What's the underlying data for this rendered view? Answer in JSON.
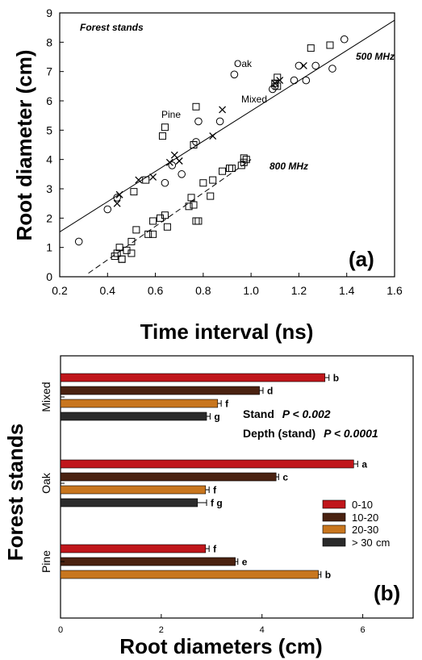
{
  "chart_data": [
    {
      "type": "scatter",
      "panel_label": "(a)",
      "title": "Forest stands",
      "xlabel": "Time interval (ns)",
      "ylabel": "Root diameter (cm)",
      "xlim": [
        0.2,
        1.6
      ],
      "ylim": [
        0,
        9
      ],
      "xticks": [
        "0.2",
        "0.4",
        "0.6",
        "0.8",
        "1.0",
        "1.2",
        "1.4",
        "1.6"
      ],
      "yticks": [
        "0",
        "1",
        "2",
        "3",
        "4",
        "5",
        "6",
        "7",
        "8",
        "9"
      ],
      "grid": false,
      "annotations": {
        "oak": "Oak",
        "pine": "Pine",
        "mixed": "Mixed",
        "mhz500": "500 MHz",
        "mhz800": "800 MHz"
      },
      "fit_lines": [
        {
          "name": "500 MHz",
          "style": "solid",
          "x": [
            0.2,
            1.6
          ],
          "y": [
            1.53,
            8.75
          ]
        },
        {
          "name": "800 MHz",
          "style": "dashed",
          "x": [
            0.32,
            1.0
          ],
          "y": [
            0.12,
            4.0
          ]
        }
      ],
      "series": [
        {
          "marker": "circle",
          "x": [
            0.28,
            0.4,
            0.44,
            0.64,
            0.67,
            0.71,
            0.77,
            0.78,
            0.87,
            0.93,
            1.09,
            1.1,
            1.18,
            1.2,
            1.23,
            1.27,
            1.34,
            1.39
          ],
          "y": [
            1.2,
            2.3,
            2.7,
            3.2,
            3.8,
            3.5,
            4.6,
            5.3,
            5.3,
            6.9,
            6.4,
            6.5,
            6.7,
            7.2,
            6.7,
            7.2,
            7.1,
            8.1
          ]
        },
        {
          "marker": "square",
          "x": [
            0.43,
            0.44,
            0.45,
            0.46,
            0.46,
            0.48,
            0.5,
            0.5,
            0.51,
            0.52,
            0.56,
            0.57,
            0.59,
            0.59,
            0.62,
            0.63,
            0.64,
            0.64,
            0.65,
            0.74,
            0.75,
            0.76,
            0.76,
            0.77,
            0.77,
            0.78,
            0.8,
            0.83,
            0.84,
            0.88,
            0.91,
            0.92,
            0.96,
            0.97,
            0.97,
            0.98,
            1.1,
            1.11,
            1.11,
            1.25,
            1.33
          ],
          "y": [
            0.7,
            0.8,
            1.0,
            0.6,
            0.6,
            0.9,
            1.2,
            0.8,
            2.9,
            1.6,
            3.3,
            1.45,
            1.9,
            1.45,
            2.0,
            4.8,
            5.1,
            2.1,
            1.7,
            2.4,
            2.7,
            2.45,
            4.5,
            1.9,
            5.8,
            1.9,
            3.2,
            2.75,
            3.3,
            3.6,
            3.7,
            3.7,
            3.8,
            4.05,
            3.9,
            4.0,
            6.6,
            6.8,
            6.5,
            7.8,
            7.9
          ]
        },
        {
          "marker": "x",
          "x": [
            0.44,
            0.45,
            0.53,
            0.59,
            0.66,
            0.68,
            0.7,
            0.84,
            0.88,
            1.1,
            1.12,
            1.22
          ],
          "y": [
            2.5,
            2.8,
            3.3,
            3.4,
            3.9,
            4.15,
            3.95,
            4.8,
            5.7,
            6.6,
            6.7,
            7.2
          ]
        }
      ]
    },
    {
      "type": "bar",
      "orientation": "horizontal",
      "panel_label": "(b)",
      "xlabel": "Root diameters (cm)",
      "ylabel": "Forest stands",
      "xlim": [
        0,
        7
      ],
      "xticks": [
        "0",
        "2",
        "4",
        "6"
      ],
      "grid": false,
      "legend": {
        "placement": "right",
        "entries": [
          "0-10",
          "10-20",
          "20-30",
          "> 30"
        ],
        "unit": "cm",
        "colors": [
          "#c0161b",
          "#4a2211",
          "#c8761e",
          "#2b2b2b"
        ]
      },
      "stats": {
        "stand_label": "Stand",
        "stand_p": "P < 0.002",
        "depth_label": "Depth (stand)",
        "depth_p": "P < 0.0001"
      },
      "groups": [
        {
          "name": "Mixed",
          "bars": [
            {
              "depth": "0-10",
              "value": 5.25,
              "err": 0.08,
              "letter": "b"
            },
            {
              "depth": "10-20",
              "value": 3.95,
              "err": 0.07,
              "letter": "d"
            },
            {
              "depth": "20-30",
              "value": 3.12,
              "err": 0.07,
              "letter": "f"
            },
            {
              "depth": "> 30",
              "value": 2.9,
              "err": 0.07,
              "letter": "g"
            }
          ]
        },
        {
          "name": "Oak",
          "bars": [
            {
              "depth": "0-10",
              "value": 5.82,
              "err": 0.08,
              "letter": "a"
            },
            {
              "depth": "10-20",
              "value": 4.28,
              "err": 0.05,
              "letter": "c"
            },
            {
              "depth": "20-30",
              "value": 2.88,
              "err": 0.07,
              "letter": "f"
            },
            {
              "depth": "> 30",
              "value": 2.72,
              "err": 0.18,
              "letter": "f g"
            }
          ]
        },
        {
          "name": "Pine",
          "bars": [
            {
              "depth": "0-10",
              "value": 2.88,
              "err": 0.07,
              "letter": "f"
            },
            {
              "depth": "10-20",
              "value": 3.47,
              "err": 0.05,
              "letter": "e"
            },
            {
              "depth": "20-30",
              "value": 5.12,
              "err": 0.05,
              "letter": "b"
            }
          ]
        }
      ]
    }
  ]
}
